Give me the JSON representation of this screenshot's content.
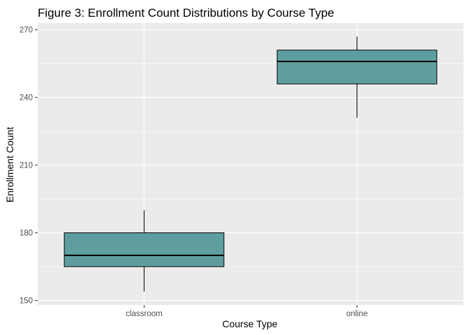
{
  "chart_data": {
    "type": "boxplot",
    "title": "Figure 3: Enrollment Count Distributions by Course Type",
    "xlabel": "Course Type",
    "ylabel": "Enrollment Count",
    "categories": [
      "classroom",
      "online"
    ],
    "boxes": [
      {
        "category": "classroom",
        "min": 154,
        "q1": 165,
        "median": 170,
        "q3": 180,
        "max": 190
      },
      {
        "category": "online",
        "min": 231,
        "q1": 246,
        "median": 256,
        "q3": 261,
        "max": 267
      }
    ],
    "yticks": [
      150,
      180,
      210,
      240,
      270
    ],
    "ylim": [
      148,
      273
    ],
    "grid": true,
    "legend": "none"
  },
  "colors": {
    "panel_background": "#ebebeb",
    "grid_major": "#ffffff",
    "box_fill": "#5f9ea0",
    "box_outline": "#000000",
    "tick_label": "#4d4d4d"
  }
}
